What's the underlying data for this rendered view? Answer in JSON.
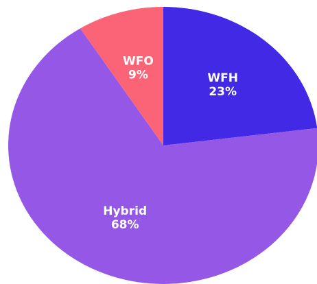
{
  "chart_data": {
    "type": "pie",
    "categories": [
      "WFH",
      "Hybrid",
      "WFO"
    ],
    "values": [
      23,
      68,
      9
    ],
    "value_labels": [
      "23%",
      "68%",
      "9%"
    ],
    "colors": [
      "#4229e6",
      "#9457e6",
      "#fb6477"
    ]
  }
}
